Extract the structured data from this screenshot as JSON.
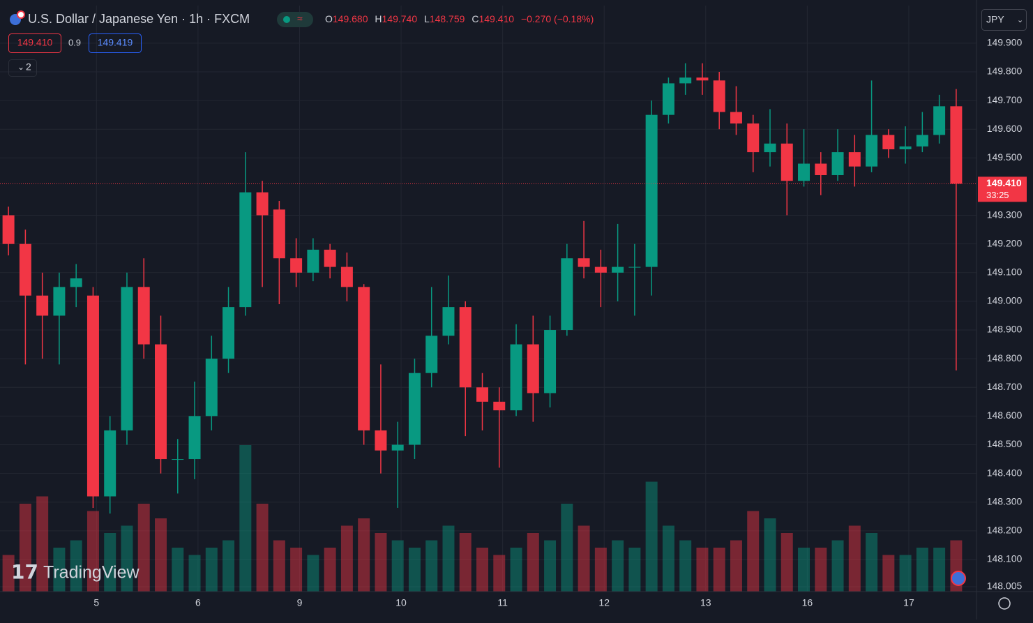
{
  "chart_data": {
    "type": "candlestick",
    "title": "U.S. Dollar / Japanese Yen · 1h · FXCM",
    "legend": {
      "o_label": "O",
      "o": "149.680",
      "h_label": "H",
      "h": "149.740",
      "l_label": "L",
      "l": "148.759",
      "c_label": "C",
      "c": "149.410",
      "change": "−0.270 (−0.18%)"
    },
    "sell_price": "149.410",
    "spread": "0.9",
    "buy_price": "149.419",
    "indicators_toggle": "2",
    "currency": "JPY",
    "price_tag": "149.410",
    "countdown": "33:25",
    "watermark": "TradingView",
    "current_price": 149.41,
    "open": [
      149.3,
      149.2,
      149.02,
      148.95,
      149.05,
      149.02,
      148.32,
      148.55,
      149.05,
      148.85,
      148.45,
      148.45,
      148.6,
      148.8,
      148.98,
      149.38,
      149.32,
      149.15,
      149.1,
      149.18,
      149.12,
      149.05,
      148.55,
      148.48,
      148.5,
      148.75,
      148.88,
      148.98,
      148.7,
      148.65,
      148.62,
      148.85,
      148.68,
      148.9,
      149.15,
      149.12,
      149.1,
      149.12,
      149.12,
      149.65,
      149.76,
      149.78,
      149.77,
      149.66,
      149.62,
      149.52,
      149.55,
      149.42,
      149.48,
      149.44,
      149.52,
      149.47,
      149.58,
      149.53,
      149.54,
      149.58,
      149.68
    ],
    "high": [
      149.33,
      149.25,
      149.1,
      149.1,
      149.13,
      149.05,
      148.6,
      149.1,
      149.15,
      148.95,
      148.52,
      148.72,
      148.88,
      149.05,
      149.52,
      149.42,
      149.35,
      149.22,
      149.22,
      149.2,
      149.17,
      149.06,
      148.78,
      148.58,
      148.8,
      149.05,
      149.09,
      149.0,
      148.75,
      148.7,
      148.92,
      148.95,
      148.95,
      149.2,
      149.28,
      149.18,
      149.27,
      149.2,
      149.7,
      149.78,
      149.83,
      149.83,
      149.8,
      149.75,
      149.65,
      149.67,
      149.62,
      149.6,
      149.52,
      149.6,
      149.58,
      149.77,
      149.6,
      149.61,
      149.66,
      149.72,
      149.74
    ],
    "low": [
      149.16,
      148.78,
      148.8,
      148.78,
      148.98,
      148.28,
      148.26,
      148.5,
      148.8,
      148.4,
      148.33,
      148.38,
      148.55,
      148.75,
      148.95,
      149.05,
      148.99,
      149.05,
      149.07,
      149.08,
      149.0,
      148.5,
      148.4,
      148.28,
      148.45,
      148.7,
      148.85,
      148.53,
      148.55,
      148.42,
      148.6,
      148.58,
      148.63,
      148.88,
      149.08,
      148.98,
      149.0,
      148.95,
      149.02,
      149.62,
      149.72,
      149.72,
      149.6,
      149.58,
      149.45,
      149.47,
      149.3,
      149.4,
      149.37,
      149.42,
      149.4,
      149.45,
      149.5,
      149.48,
      149.52,
      149.55,
      148.759
    ],
    "close": [
      149.2,
      149.02,
      148.95,
      149.05,
      149.08,
      148.32,
      148.55,
      149.05,
      148.85,
      148.45,
      148.45,
      148.6,
      148.8,
      148.98,
      149.38,
      149.3,
      149.15,
      149.1,
      149.18,
      149.12,
      149.05,
      148.55,
      148.48,
      148.5,
      148.75,
      148.88,
      148.98,
      148.7,
      148.65,
      148.62,
      148.85,
      148.68,
      148.9,
      149.15,
      149.12,
      149.1,
      149.12,
      149.12,
      149.65,
      149.76,
      149.78,
      149.77,
      149.66,
      149.62,
      149.52,
      149.55,
      149.42,
      149.48,
      149.44,
      149.52,
      149.47,
      149.58,
      149.53,
      149.54,
      149.58,
      149.68,
      149.41
    ],
    "volume": [
      25,
      60,
      65,
      30,
      35,
      55,
      40,
      45,
      60,
      50,
      30,
      25,
      30,
      35,
      100,
      60,
      35,
      30,
      25,
      30,
      45,
      50,
      40,
      35,
      30,
      35,
      45,
      40,
      30,
      25,
      30,
      40,
      35,
      60,
      45,
      30,
      35,
      30,
      75,
      45,
      35,
      30,
      30,
      35,
      55,
      50,
      40,
      30,
      30,
      35,
      45,
      40,
      25,
      25,
      30,
      30,
      35
    ],
    "xticks": [
      {
        "value": 5.2,
        "label": "5"
      },
      {
        "value": 11.2,
        "label": "6"
      },
      {
        "value": 17.2,
        "label": "9"
      },
      {
        "value": 23.2,
        "label": "10"
      },
      {
        "value": 29.2,
        "label": "11"
      },
      {
        "value": 35.2,
        "label": "12"
      },
      {
        "value": 41.2,
        "label": "13"
      },
      {
        "value": 47.2,
        "label": "16"
      },
      {
        "value": 53.2,
        "label": "17"
      }
    ],
    "xlim": [
      -0.5,
      57.2
    ],
    "ylim": [
      147.988,
      150.031
    ],
    "yticks": [
      {
        "value": 149.9,
        "label": "149.900"
      },
      {
        "value": 149.8,
        "label": "149.800"
      },
      {
        "value": 149.7,
        "label": "149.700"
      },
      {
        "value": 149.6,
        "label": "149.600"
      },
      {
        "value": 149.5,
        "label": "149.500"
      },
      {
        "value": 149.3,
        "label": "149.300"
      },
      {
        "value": 149.2,
        "label": "149.200"
      },
      {
        "value": 149.1,
        "label": "149.100"
      },
      {
        "value": 149.0,
        "label": "149.000"
      },
      {
        "value": 148.9,
        "label": "148.900"
      },
      {
        "value": 148.8,
        "label": "148.800"
      },
      {
        "value": 148.7,
        "label": "148.700"
      },
      {
        "value": 148.6,
        "label": "148.600"
      },
      {
        "value": 148.5,
        "label": "148.500"
      },
      {
        "value": 148.4,
        "label": "148.400"
      },
      {
        "value": 148.3,
        "label": "148.300"
      },
      {
        "value": 148.2,
        "label": "148.200"
      },
      {
        "value": 148.1,
        "label": "148.100"
      },
      {
        "value": 148.005,
        "label": "148.005"
      }
    ],
    "up_color": "#089981",
    "down_color": "#f23645",
    "grid": true
  }
}
